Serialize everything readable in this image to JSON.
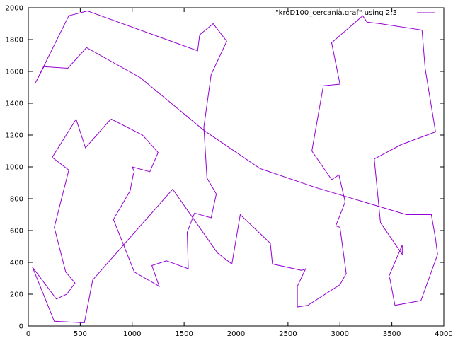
{
  "colors": {
    "series": "#9400d3",
    "axis": "#000000",
    "background": "#ffffff"
  },
  "chart_data": {
    "type": "line",
    "title": "",
    "xlabel": "",
    "ylabel": "",
    "grid": false,
    "legend_position": "top-right",
    "xlim": [
      0,
      4000
    ],
    "ylim": [
      0,
      2000
    ],
    "xticks": [
      0,
      500,
      1000,
      1500,
      2000,
      2500,
      3000,
      3500,
      4000
    ],
    "yticks": [
      0,
      200,
      400,
      600,
      800,
      1000,
      1200,
      1400,
      1600,
      1800,
      2000
    ],
    "series": [
      {
        "name": "\"kroD100_cercania.graf\" using 2:3",
        "points": [
          [
            70,
            1530
          ],
          [
            150,
            1630
          ],
          [
            380,
            1620
          ],
          [
            560,
            1750
          ],
          [
            1080,
            1560
          ],
          [
            1690,
            1230
          ],
          [
            2230,
            990
          ],
          [
            2770,
            870
          ],
          [
            3640,
            700
          ],
          [
            3880,
            700
          ],
          [
            3920,
            550
          ],
          [
            3940,
            450
          ],
          [
            3780,
            160
          ],
          [
            3530,
            130
          ],
          [
            3480,
            300
          ],
          [
            3470,
            310
          ],
          [
            3600,
            510
          ],
          [
            3600,
            450
          ],
          [
            3390,
            650
          ],
          [
            3330,
            1050
          ],
          [
            3590,
            1140
          ],
          [
            3920,
            1220
          ],
          [
            3820,
            1620
          ],
          [
            3790,
            1860
          ],
          [
            3390,
            1900
          ],
          [
            3260,
            1910
          ],
          [
            3220,
            1950
          ],
          [
            2920,
            1780
          ],
          [
            3000,
            1520
          ],
          [
            2840,
            1510
          ],
          [
            2730,
            1100
          ],
          [
            2920,
            920
          ],
          [
            2990,
            950
          ],
          [
            3050,
            780
          ],
          [
            2960,
            630
          ],
          [
            3000,
            620
          ],
          [
            3060,
            330
          ],
          [
            3000,
            260
          ],
          [
            2690,
            130
          ],
          [
            2590,
            120
          ],
          [
            2590,
            250
          ],
          [
            2670,
            360
          ],
          [
            2630,
            350
          ],
          [
            2350,
            390
          ],
          [
            2330,
            520
          ],
          [
            2040,
            700
          ],
          [
            1960,
            390
          ],
          [
            1820,
            460
          ],
          [
            1390,
            860
          ],
          [
            620,
            290
          ],
          [
            540,
            20
          ],
          [
            250,
            30
          ],
          [
            40,
            370
          ],
          [
            270,
            170
          ],
          [
            370,
            200
          ],
          [
            450,
            270
          ],
          [
            360,
            340
          ],
          [
            250,
            620
          ],
          [
            390,
            980
          ],
          [
            230,
            1060
          ],
          [
            460,
            1300
          ],
          [
            550,
            1120
          ],
          [
            780,
            1290
          ],
          [
            800,
            1300
          ],
          [
            1100,
            1200
          ],
          [
            1250,
            1090
          ],
          [
            1170,
            970
          ],
          [
            1000,
            1000
          ],
          [
            1020,
            970
          ],
          [
            1010,
            950
          ],
          [
            980,
            850
          ],
          [
            820,
            670
          ],
          [
            1020,
            340
          ],
          [
            1260,
            250
          ],
          [
            1190,
            380
          ],
          [
            1330,
            410
          ],
          [
            1540,
            360
          ],
          [
            1530,
            590
          ],
          [
            1600,
            710
          ],
          [
            1760,
            680
          ],
          [
            1810,
            830
          ],
          [
            1720,
            930
          ],
          [
            1690,
            1250
          ],
          [
            1760,
            1580
          ],
          [
            1910,
            1790
          ],
          [
            1780,
            1900
          ],
          [
            1650,
            1830
          ],
          [
            1630,
            1730
          ],
          [
            570,
            1980
          ],
          [
            390,
            1950
          ],
          [
            70,
            1530
          ]
        ]
      }
    ]
  }
}
